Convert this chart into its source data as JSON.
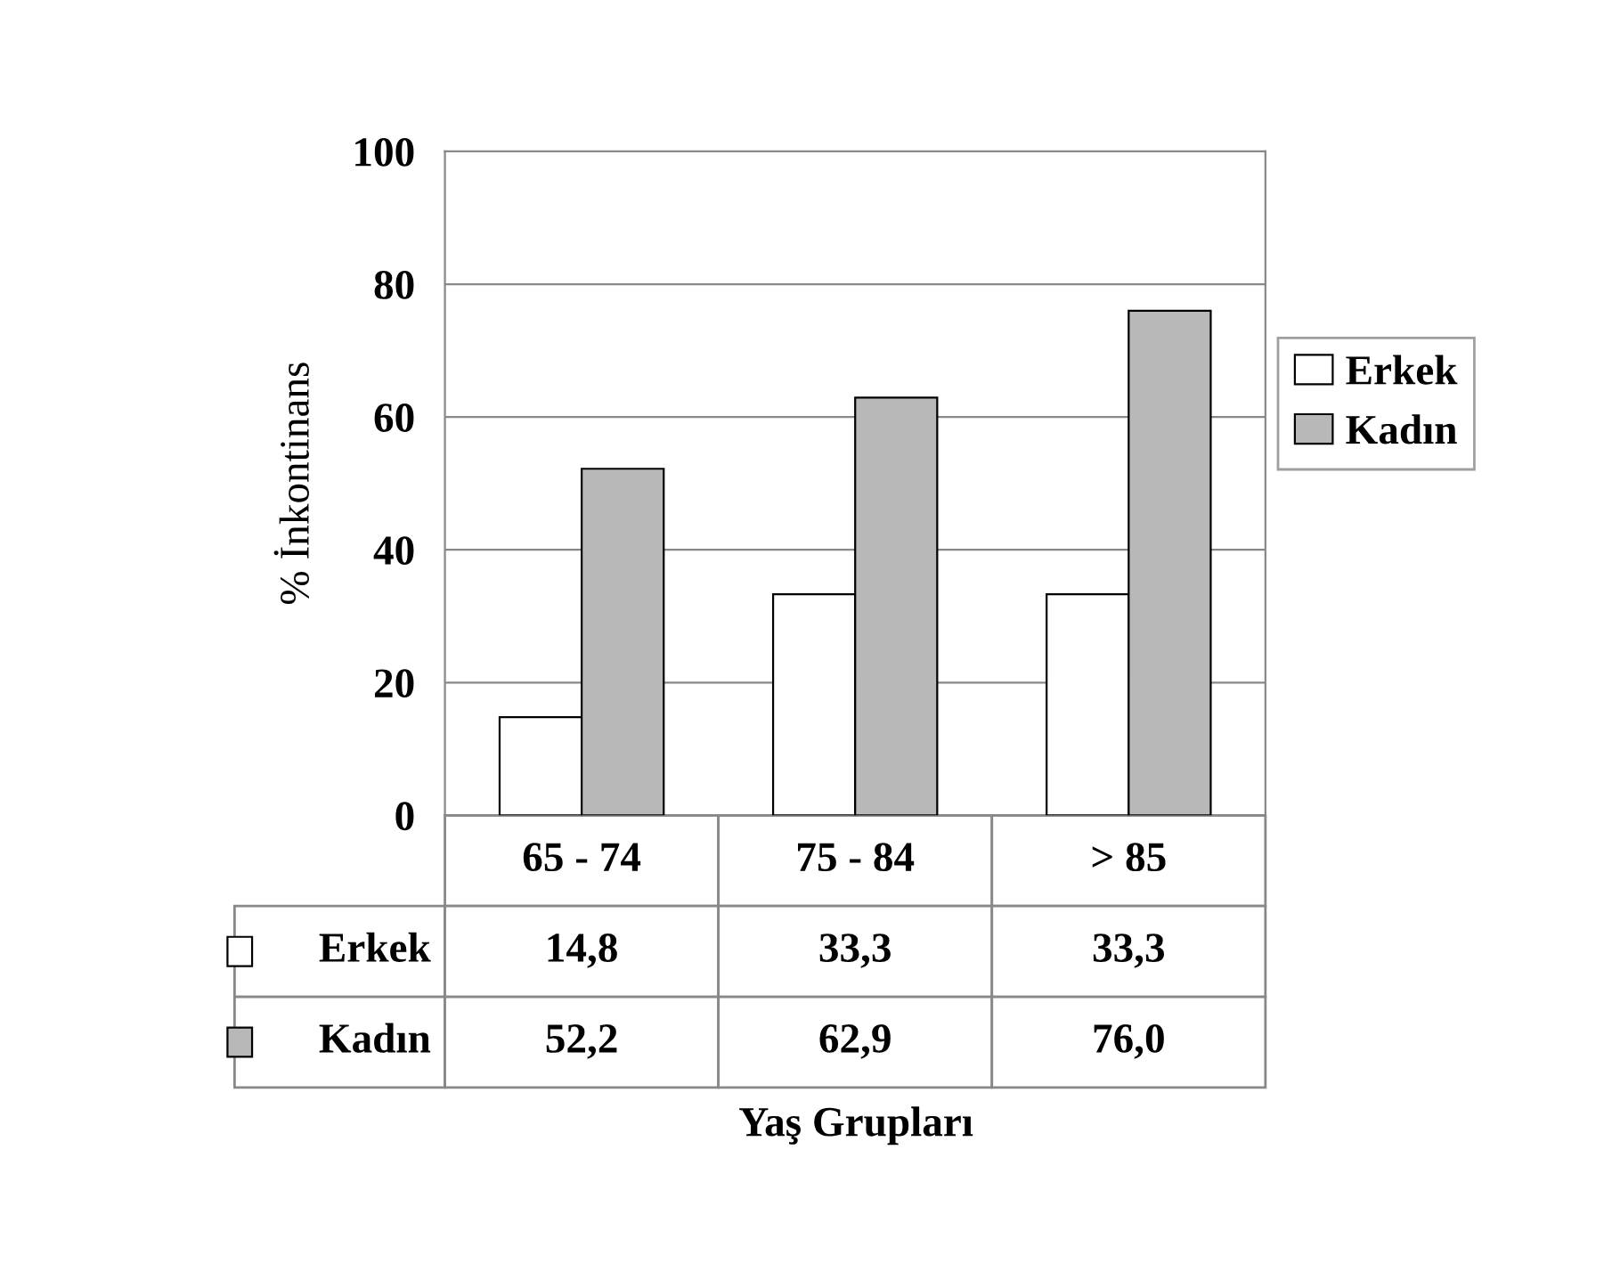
{
  "chart_data": {
    "type": "bar",
    "ylabel": "% İnkontinans",
    "annotations": [
      "Yaş Grupları"
    ],
    "categories": [
      "65 - 74",
      "75 - 84",
      "> 85"
    ],
    "series": [
      {
        "name": "Erkek",
        "color": "#ffffff",
        "values": [
          14.8,
          33.3,
          33.3
        ],
        "value_labels": [
          "14,8",
          "33,3",
          "33,3"
        ]
      },
      {
        "name": "Kadın",
        "color": "#b8b8b8",
        "values": [
          52.2,
          62.9,
          76.0
        ],
        "value_labels": [
          "52,2",
          "62,9",
          "76,0"
        ]
      }
    ],
    "ylim": [
      0,
      100
    ],
    "yticks": [
      0,
      20,
      40,
      60,
      80,
      100
    ],
    "grid": "y",
    "legend": "right"
  }
}
